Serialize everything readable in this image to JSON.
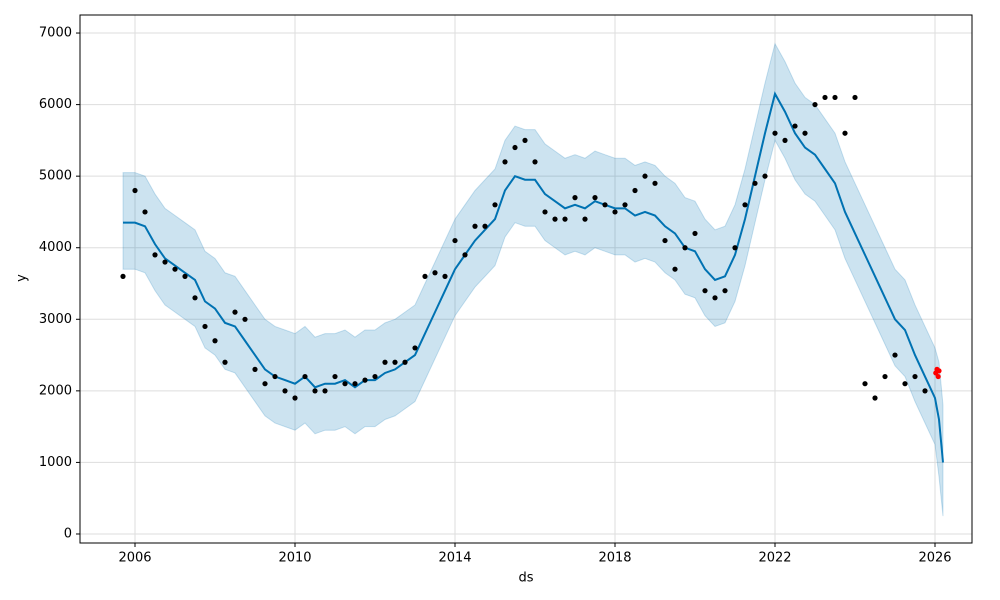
{
  "chart_data": {
    "type": "line",
    "xlabel": "ds",
    "ylabel": "y",
    "xlim": [
      2004.625,
      2026.925
    ],
    "ylim": [
      -126,
      7252
    ],
    "xticks": [
      2006,
      2010,
      2014,
      2018,
      2022,
      2026
    ],
    "yticks": [
      0,
      1000,
      2000,
      3000,
      4000,
      5000,
      6000,
      7000
    ],
    "grid": true,
    "series": [
      {
        "type": "band",
        "color": "#0072B2",
        "x": [
          2005.7,
          2006,
          2006.25,
          2006.5,
          2006.75,
          2007,
          2007.25,
          2007.5,
          2007.75,
          2008,
          2008.25,
          2008.5,
          2008.75,
          2009,
          2009.25,
          2009.5,
          2009.75,
          2010,
          2010.25,
          2010.5,
          2010.75,
          2011,
          2011.25,
          2011.5,
          2011.75,
          2012,
          2012.25,
          2012.5,
          2012.75,
          2013,
          2013.25,
          2013.5,
          2013.75,
          2014,
          2014.25,
          2014.5,
          2014.75,
          2015,
          2015.25,
          2015.5,
          2015.75,
          2016,
          2016.25,
          2016.5,
          2016.75,
          2017,
          2017.25,
          2017.5,
          2017.75,
          2018,
          2018.25,
          2018.5,
          2018.75,
          2019,
          2019.25,
          2019.5,
          2019.75,
          2020,
          2020.25,
          2020.5,
          2020.75,
          2021,
          2021.25,
          2021.5,
          2021.75,
          2022,
          2022.25,
          2022.5,
          2022.75,
          2023,
          2023.25,
          2023.5,
          2023.75,
          2024,
          2024.25,
          2024.5,
          2024.75,
          2025,
          2025.25,
          2025.5,
          2025.75,
          2026,
          2026.1,
          2026.2
        ],
        "lower": [
          3700,
          3700,
          3650,
          3400,
          3200,
          3100,
          3000,
          2900,
          2600,
          2500,
          2300,
          2250,
          2050,
          1850,
          1650,
          1550,
          1500,
          1450,
          1550,
          1400,
          1450,
          1450,
          1500,
          1400,
          1500,
          1500,
          1600,
          1650,
          1750,
          1850,
          2150,
          2450,
          2750,
          3050,
          3250,
          3450,
          3600,
          3750,
          4150,
          4350,
          4300,
          4300,
          4100,
          4000,
          3900,
          3950,
          3900,
          4000,
          3950,
          3900,
          3900,
          3800,
          3850,
          3800,
          3650,
          3550,
          3350,
          3300,
          3050,
          2900,
          2950,
          3250,
          3750,
          4350,
          4950,
          5500,
          5250,
          4950,
          4750,
          4650,
          4450,
          4250,
          3850,
          3550,
          3250,
          2950,
          2650,
          2350,
          2200,
          1850,
          1550,
          1250,
          800,
          250
        ],
        "upper": [
          5050,
          5050,
          5000,
          4750,
          4550,
          4450,
          4350,
          4250,
          3950,
          3850,
          3650,
          3600,
          3400,
          3200,
          3000,
          2900,
          2850,
          2800,
          2900,
          2750,
          2800,
          2800,
          2850,
          2750,
          2850,
          2850,
          2950,
          3000,
          3100,
          3200,
          3500,
          3800,
          4100,
          4400,
          4600,
          4800,
          4950,
          5100,
          5500,
          5700,
          5650,
          5650,
          5450,
          5350,
          5250,
          5300,
          5250,
          5350,
          5300,
          5250,
          5250,
          5150,
          5200,
          5150,
          5000,
          4900,
          4700,
          4650,
          4400,
          4250,
          4300,
          4600,
          5100,
          5700,
          6300,
          6850,
          6600,
          6300,
          6100,
          6000,
          5800,
          5600,
          5200,
          4900,
          4600,
          4300,
          4000,
          3700,
          3550,
          3200,
          2900,
          2600,
          2400,
          1800
        ]
      },
      {
        "type": "line",
        "color": "#0072B2",
        "x": [
          2005.7,
          2006,
          2006.25,
          2006.5,
          2006.75,
          2007,
          2007.25,
          2007.5,
          2007.75,
          2008,
          2008.25,
          2008.5,
          2008.75,
          2009,
          2009.25,
          2009.5,
          2009.75,
          2010,
          2010.25,
          2010.5,
          2010.75,
          2011,
          2011.25,
          2011.5,
          2011.75,
          2012,
          2012.25,
          2012.5,
          2012.75,
          2013,
          2013.25,
          2013.5,
          2013.75,
          2014,
          2014.25,
          2014.5,
          2014.75,
          2015,
          2015.25,
          2015.5,
          2015.75,
          2016,
          2016.25,
          2016.5,
          2016.75,
          2017,
          2017.25,
          2017.5,
          2017.75,
          2018,
          2018.25,
          2018.5,
          2018.75,
          2019,
          2019.25,
          2019.5,
          2019.75,
          2020,
          2020.25,
          2020.5,
          2020.75,
          2021,
          2021.25,
          2021.5,
          2021.75,
          2022,
          2022.25,
          2022.5,
          2022.75,
          2023,
          2023.25,
          2023.5,
          2023.75,
          2024,
          2024.25,
          2024.5,
          2024.75,
          2025,
          2025.25,
          2025.5,
          2025.75,
          2026,
          2026.1,
          2026.2
        ],
        "values": [
          4350,
          4350,
          4300,
          4050,
          3850,
          3750,
          3650,
          3550,
          3250,
          3150,
          2950,
          2900,
          2700,
          2500,
          2300,
          2200,
          2150,
          2100,
          2200,
          2050,
          2100,
          2100,
          2150,
          2050,
          2150,
          2150,
          2250,
          2300,
          2400,
          2500,
          2800,
          3100,
          3400,
          3700,
          3900,
          4100,
          4250,
          4400,
          4800,
          5000,
          4950,
          4950,
          4750,
          4650,
          4550,
          4600,
          4550,
          4650,
          4600,
          4550,
          4550,
          4450,
          4500,
          4450,
          4300,
          4200,
          4000,
          3950,
          3700,
          3550,
          3600,
          3900,
          4400,
          5000,
          5600,
          6150,
          5900,
          5600,
          5400,
          5300,
          5100,
          4900,
          4500,
          4200,
          3900,
          3600,
          3300,
          3000,
          2850,
          2500,
          2200,
          1900,
          1600,
          1000
        ]
      },
      {
        "type": "scatter",
        "color": "#000000",
        "x": [
          2005.7,
          2006,
          2006.25,
          2006.5,
          2006.75,
          2007,
          2007.25,
          2007.5,
          2007.75,
          2008,
          2008.25,
          2008.5,
          2008.75,
          2009,
          2009.25,
          2009.5,
          2009.75,
          2010,
          2010.25,
          2010.5,
          2010.75,
          2011,
          2011.25,
          2011.5,
          2011.75,
          2012,
          2012.25,
          2012.5,
          2012.75,
          2013,
          2013.25,
          2013.5,
          2013.75,
          2014,
          2014.25,
          2014.5,
          2014.75,
          2015,
          2015.25,
          2015.5,
          2015.75,
          2016,
          2016.25,
          2016.5,
          2016.75,
          2017,
          2017.25,
          2017.5,
          2017.75,
          2018,
          2018.25,
          2018.5,
          2018.75,
          2019,
          2019.25,
          2019.5,
          2019.75,
          2020,
          2020.25,
          2020.5,
          2020.75,
          2021,
          2021.25,
          2021.5,
          2021.75,
          2022,
          2022.25,
          2022.5,
          2022.75,
          2023,
          2023.25,
          2023.5,
          2023.75,
          2024,
          2024.25,
          2024.5,
          2024.75,
          2025,
          2025.25,
          2025.5,
          2025.75
        ],
        "values": [
          3600,
          4800,
          4500,
          3900,
          3800,
          3700,
          3600,
          3300,
          2900,
          2700,
          2400,
          3100,
          3000,
          2300,
          2100,
          2200,
          2000,
          1900,
          2200,
          2000,
          2000,
          2200,
          2100,
          2100,
          2150,
          2200,
          2400,
          2400,
          2400,
          2600,
          3600,
          3650,
          3600,
          4100,
          3900,
          4300,
          4300,
          4600,
          5200,
          5400,
          5500,
          5200,
          4500,
          4400,
          4400,
          4700,
          4400,
          4700,
          4600,
          4500,
          4600,
          4800,
          5000,
          4900,
          4100,
          3700,
          4000,
          4200,
          3400,
          3300,
          3400,
          4000,
          4600,
          4900,
          5000,
          5600,
          5500,
          5700,
          5600,
          6000,
          6100,
          6100,
          5600,
          6100,
          2100,
          1900,
          2200,
          2500,
          2100,
          2200,
          2000
        ]
      },
      {
        "type": "scatter",
        "color": "#ff0000",
        "x": [
          2026.02,
          2026.05,
          2026.08,
          2026.1
        ],
        "values": [
          2250,
          2300,
          2200,
          2280
        ]
      }
    ]
  }
}
